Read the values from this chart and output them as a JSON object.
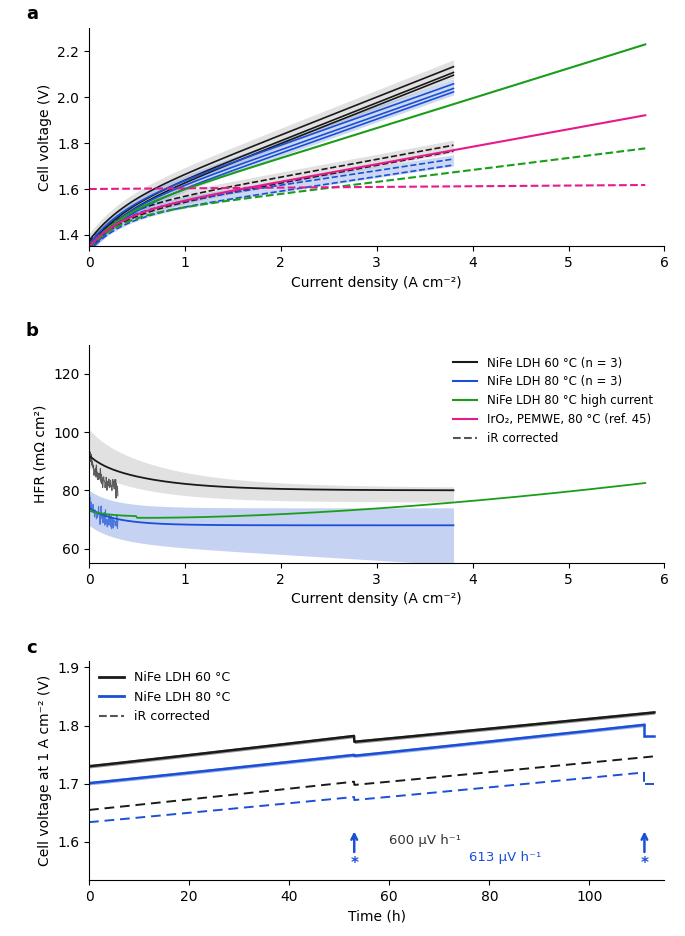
{
  "panel_a": {
    "xlim": [
      0,
      6
    ],
    "ylim": [
      1.35,
      2.3
    ],
    "yticks": [
      1.4,
      1.6,
      1.8,
      2.0,
      2.2
    ],
    "xticks": [
      0,
      1,
      2,
      3,
      4,
      5,
      6
    ],
    "xlabel": "Current density (A cm⁻²)",
    "ylabel": "Cell voltage (V)"
  },
  "panel_b": {
    "xlim": [
      0,
      6
    ],
    "ylim": [
      55,
      130
    ],
    "yticks": [
      60,
      80,
      100,
      120
    ],
    "xticks": [
      0,
      1,
      2,
      3,
      4,
      5,
      6
    ],
    "xlabel": "Current density (A cm⁻²)",
    "ylabel": "HFR (mΩ cm²)"
  },
  "panel_c": {
    "xlim": [
      0,
      115
    ],
    "ylim": [
      1.535,
      1.91
    ],
    "yticks": [
      1.6,
      1.7,
      1.8,
      1.9
    ],
    "xticks": [
      0,
      20,
      40,
      60,
      80,
      100
    ],
    "xlabel": "Time (h)",
    "ylabel": "Cell voltage at 1 A cm⁻² (V)"
  },
  "colors": {
    "black": "#1a1a1a",
    "blue": "#1a4fd6",
    "green": "#1a9e1a",
    "pink": "#e8198c",
    "gray_shade": "#aaaaaa",
    "blue_shade": "#7090dd"
  },
  "legend_b": [
    {
      "label": "NiFe LDH 60 °C (n = 3)",
      "color": "#1a1a1a",
      "ls": "-"
    },
    {
      "label": "NiFe LDH 80 °C (n = 3)",
      "color": "#1a4fd6",
      "ls": "-"
    },
    {
      "label": "NiFe LDH 80 °C high current",
      "color": "#1a9e1a",
      "ls": "-"
    },
    {
      "label": "IrO₂, PEMWE, 80 °C (ref. 45)",
      "color": "#e8198c",
      "ls": "-"
    },
    {
      "label": "iR corrected",
      "color": "#555555",
      "ls": "--"
    }
  ],
  "legend_c": [
    {
      "label": "NiFe LDH 60 °C",
      "color": "#1a1a1a",
      "ls": "-"
    },
    {
      "label": "NiFe LDH 80 °C",
      "color": "#1a4fd6",
      "ls": "-"
    },
    {
      "label": "iR corrected",
      "color": "#555555",
      "ls": "--"
    }
  ]
}
